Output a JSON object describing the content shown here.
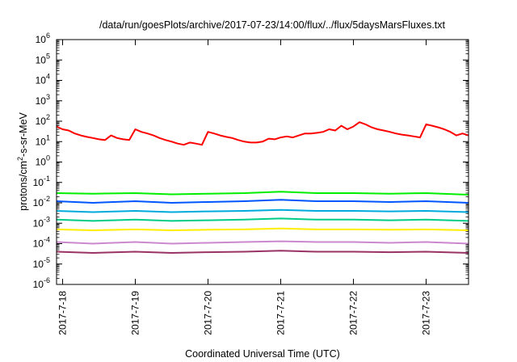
{
  "chart_data": {
    "type": "line",
    "title": "/data/run/goesPlots/archive/2017-07-23/14:00/flux/../flux/5daysMarsFluxes.txt",
    "xlabel": "Coordinated Universal Time (UTC)",
    "ylabel": "protons/cm²-s-sr-MeV",
    "ylabel_parts": [
      "protons/cm",
      "2",
      "-s-sr-MeV"
    ],
    "y_scale": "log",
    "ylim": [
      1e-06,
      1000000.0
    ],
    "y_ticks": [
      {
        "exp": "-6",
        "value": 1e-06
      },
      {
        "exp": "-5",
        "value": 1e-05
      },
      {
        "exp": "-4",
        "value": 0.0001
      },
      {
        "exp": "-3",
        "value": 0.001
      },
      {
        "exp": "-2",
        "value": 0.01
      },
      {
        "exp": "-1",
        "value": 0.1
      },
      {
        "exp": "0",
        "value": 1
      },
      {
        "exp": "1",
        "value": 10
      },
      {
        "exp": "2",
        "value": 100
      },
      {
        "exp": "3",
        "value": 1000
      },
      {
        "exp": "4",
        "value": 10000
      },
      {
        "exp": "5",
        "value": 100000
      },
      {
        "exp": "6",
        "value": 1000000
      }
    ],
    "xlim": [
      "2017-07-17 22:00",
      "2017-07-23 14:00"
    ],
    "x_ticks": [
      "2017-7-18",
      "2017-7-19",
      "2017-7-20",
      "2017-7-21",
      "2017-7-22",
      "2017-7-23"
    ],
    "x_tick_times": [
      "2017-07-18 00:00",
      "2017-07-19 00:00",
      "2017-07-20 00:00",
      "2017-07-21 00:00",
      "2017-07-22 00:00",
      "2017-07-23 00:00"
    ],
    "grid": false,
    "legend": "none",
    "series": [
      {
        "color": "#ff0000",
        "x": [
          "2017-07-17 22:00",
          "2017-07-18 00:00",
          "2017-07-18 02:00",
          "2017-07-18 04:00",
          "2017-07-18 06:00",
          "2017-07-18 08:00",
          "2017-07-18 10:00",
          "2017-07-18 12:00",
          "2017-07-18 14:00",
          "2017-07-18 16:00",
          "2017-07-18 18:00",
          "2017-07-18 20:00",
          "2017-07-18 22:00",
          "2017-07-19 00:00",
          "2017-07-19 02:00",
          "2017-07-19 04:00",
          "2017-07-19 06:00",
          "2017-07-19 08:00",
          "2017-07-19 10:00",
          "2017-07-19 12:00",
          "2017-07-19 14:00",
          "2017-07-19 16:00",
          "2017-07-19 18:00",
          "2017-07-19 20:00",
          "2017-07-19 22:00",
          "2017-07-20 00:00",
          "2017-07-20 02:00",
          "2017-07-20 04:00",
          "2017-07-20 06:00",
          "2017-07-20 08:00",
          "2017-07-20 10:00",
          "2017-07-20 12:00",
          "2017-07-20 14:00",
          "2017-07-20 16:00",
          "2017-07-20 18:00",
          "2017-07-20 20:00",
          "2017-07-20 22:00",
          "2017-07-21 00:00",
          "2017-07-21 02:00",
          "2017-07-21 04:00",
          "2017-07-21 06:00",
          "2017-07-21 08:00",
          "2017-07-21 10:00",
          "2017-07-21 12:00",
          "2017-07-21 14:00",
          "2017-07-21 16:00",
          "2017-07-21 18:00",
          "2017-07-21 20:00",
          "2017-07-21 22:00",
          "2017-07-22 00:00",
          "2017-07-22 02:00",
          "2017-07-22 04:00",
          "2017-07-22 06:00",
          "2017-07-22 08:00",
          "2017-07-22 10:00",
          "2017-07-22 12:00",
          "2017-07-22 14:00",
          "2017-07-22 16:00",
          "2017-07-22 18:00",
          "2017-07-22 20:00",
          "2017-07-22 22:00",
          "2017-07-23 00:00",
          "2017-07-23 02:00",
          "2017-07-23 04:00",
          "2017-07-23 06:00",
          "2017-07-23 08:00",
          "2017-07-23 10:00",
          "2017-07-23 12:00",
          "2017-07-23 14:00"
        ],
        "y": [
          55,
          40,
          35,
          25,
          20,
          17,
          15,
          13,
          12,
          20,
          15,
          13,
          12,
          40,
          30,
          25,
          20,
          15,
          12,
          10,
          8,
          7,
          9,
          8,
          7,
          30,
          25,
          20,
          17,
          15,
          12,
          10,
          9,
          9,
          10,
          14,
          13,
          16,
          18,
          16,
          20,
          25,
          25,
          27,
          30,
          40,
          35,
          60,
          40,
          55,
          90,
          70,
          50,
          40,
          35,
          30,
          25,
          22,
          20,
          18,
          16,
          70,
          60,
          50,
          40,
          30,
          20,
          25,
          20
        ]
      },
      {
        "color": "#00ee00",
        "x": [
          "2017-07-17 22:00",
          "2017-07-18 10:00",
          "2017-07-19 00:00",
          "2017-07-19 12:00",
          "2017-07-20 00:00",
          "2017-07-20 12:00",
          "2017-07-21 00:00",
          "2017-07-21 12:00",
          "2017-07-22 00:00",
          "2017-07-22 12:00",
          "2017-07-23 00:00",
          "2017-07-23 14:00"
        ],
        "y": [
          0.03,
          0.028,
          0.03,
          0.026,
          0.028,
          0.03,
          0.035,
          0.03,
          0.03,
          0.028,
          0.03,
          0.025
        ]
      },
      {
        "color": "#0055ff",
        "x": [
          "2017-07-17 22:00",
          "2017-07-18 10:00",
          "2017-07-19 00:00",
          "2017-07-19 12:00",
          "2017-07-20 00:00",
          "2017-07-20 12:00",
          "2017-07-21 00:00",
          "2017-07-21 12:00",
          "2017-07-22 00:00",
          "2017-07-22 12:00",
          "2017-07-23 00:00",
          "2017-07-23 14:00"
        ],
        "y": [
          0.012,
          0.01,
          0.012,
          0.01,
          0.011,
          0.012,
          0.014,
          0.012,
          0.012,
          0.011,
          0.012,
          0.01
        ]
      },
      {
        "color": "#00aadd",
        "x": [
          "2017-07-17 22:00",
          "2017-07-18 10:00",
          "2017-07-19 00:00",
          "2017-07-19 12:00",
          "2017-07-20 00:00",
          "2017-07-20 12:00",
          "2017-07-21 00:00",
          "2017-07-21 12:00",
          "2017-07-22 00:00",
          "2017-07-22 12:00",
          "2017-07-23 00:00",
          "2017-07-23 14:00"
        ],
        "y": [
          0.004,
          0.0035,
          0.004,
          0.0035,
          0.0038,
          0.004,
          0.0045,
          0.004,
          0.004,
          0.0038,
          0.004,
          0.0035
        ]
      },
      {
        "color": "#00cc88",
        "x": [
          "2017-07-17 22:00",
          "2017-07-18 10:00",
          "2017-07-19 00:00",
          "2017-07-19 12:00",
          "2017-07-20 00:00",
          "2017-07-20 12:00",
          "2017-07-21 00:00",
          "2017-07-21 12:00",
          "2017-07-22 00:00",
          "2017-07-22 12:00",
          "2017-07-23 00:00",
          "2017-07-23 14:00"
        ],
        "y": [
          0.0015,
          0.0013,
          0.0015,
          0.0013,
          0.0014,
          0.0015,
          0.0017,
          0.0015,
          0.0015,
          0.0014,
          0.0015,
          0.0013
        ]
      },
      {
        "color": "#ffee00",
        "x": [
          "2017-07-17 22:00",
          "2017-07-18 10:00",
          "2017-07-19 00:00",
          "2017-07-19 12:00",
          "2017-07-20 00:00",
          "2017-07-20 12:00",
          "2017-07-21 00:00",
          "2017-07-21 12:00",
          "2017-07-22 00:00",
          "2017-07-22 12:00",
          "2017-07-23 00:00",
          "2017-07-23 14:00"
        ],
        "y": [
          0.0005,
          0.00045,
          0.0005,
          0.00045,
          0.00048,
          0.0005,
          0.00055,
          0.0005,
          0.0005,
          0.00048,
          0.0005,
          0.00045
        ]
      },
      {
        "color": "#cc88cc",
        "x": [
          "2017-07-17 22:00",
          "2017-07-18 10:00",
          "2017-07-19 00:00",
          "2017-07-19 12:00",
          "2017-07-20 00:00",
          "2017-07-20 12:00",
          "2017-07-21 00:00",
          "2017-07-21 12:00",
          "2017-07-22 00:00",
          "2017-07-22 12:00",
          "2017-07-23 00:00",
          "2017-07-23 14:00"
        ],
        "y": [
          0.00012,
          0.0001,
          0.00012,
          0.0001,
          0.00011,
          0.00012,
          0.00013,
          0.00012,
          0.00012,
          0.00011,
          0.00012,
          0.0001
        ]
      },
      {
        "color": "#993366",
        "x": [
          "2017-07-17 22:00",
          "2017-07-18 10:00",
          "2017-07-19 00:00",
          "2017-07-19 12:00",
          "2017-07-20 00:00",
          "2017-07-20 12:00",
          "2017-07-21 00:00",
          "2017-07-21 12:00",
          "2017-07-22 00:00",
          "2017-07-22 12:00",
          "2017-07-23 00:00",
          "2017-07-23 14:00"
        ],
        "y": [
          4e-05,
          3.5e-05,
          4e-05,
          3.5e-05,
          3.8e-05,
          4e-05,
          4.5e-05,
          4e-05,
          4e-05,
          3.8e-05,
          4e-05,
          3.5e-05
        ]
      }
    ]
  }
}
